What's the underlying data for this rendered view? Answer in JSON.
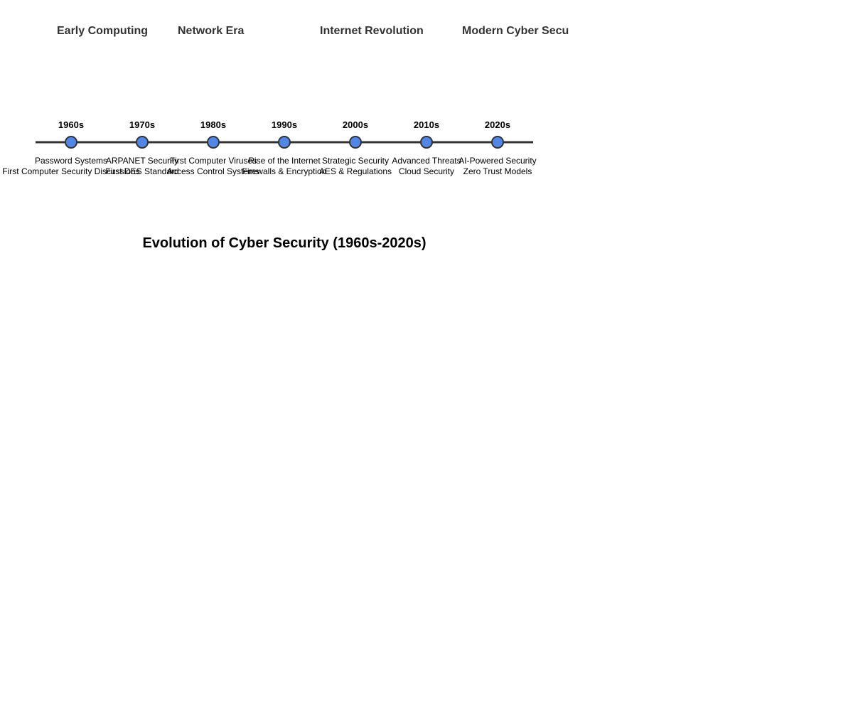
{
  "title": "Evolution of Cyber Security (1960s-2020s)",
  "eras": [
    {
      "label": "Early Computing"
    },
    {
      "label": "Network Era"
    },
    {
      "label": "Internet Revolution"
    },
    {
      "label": "Modern Cyber Secu"
    }
  ],
  "decades": [
    {
      "label": "1960s",
      "events": [
        "Password Systems",
        "First Computer Security Discussions"
      ]
    },
    {
      "label": "1970s",
      "events": [
        "ARPANET Security",
        "First DES Standard"
      ]
    },
    {
      "label": "1980s",
      "events": [
        "First Computer Viruses",
        "Access Control Systems"
      ]
    },
    {
      "label": "1990s",
      "events": [
        "Rise of the Internet",
        "Firewalls & Encryption"
      ]
    },
    {
      "label": "2000s",
      "events": [
        "Strategic Security",
        "AES & Regulations"
      ]
    },
    {
      "label": "2010s",
      "events": [
        "Advanced Threats",
        "Cloud Security"
      ]
    },
    {
      "label": "2020s",
      "events": [
        "AI-Powered Security",
        "Zero Trust Models"
      ]
    }
  ],
  "colors": {
    "node_fill": "#4f86e8",
    "node_stroke": "#333333",
    "line": "#333333"
  }
}
